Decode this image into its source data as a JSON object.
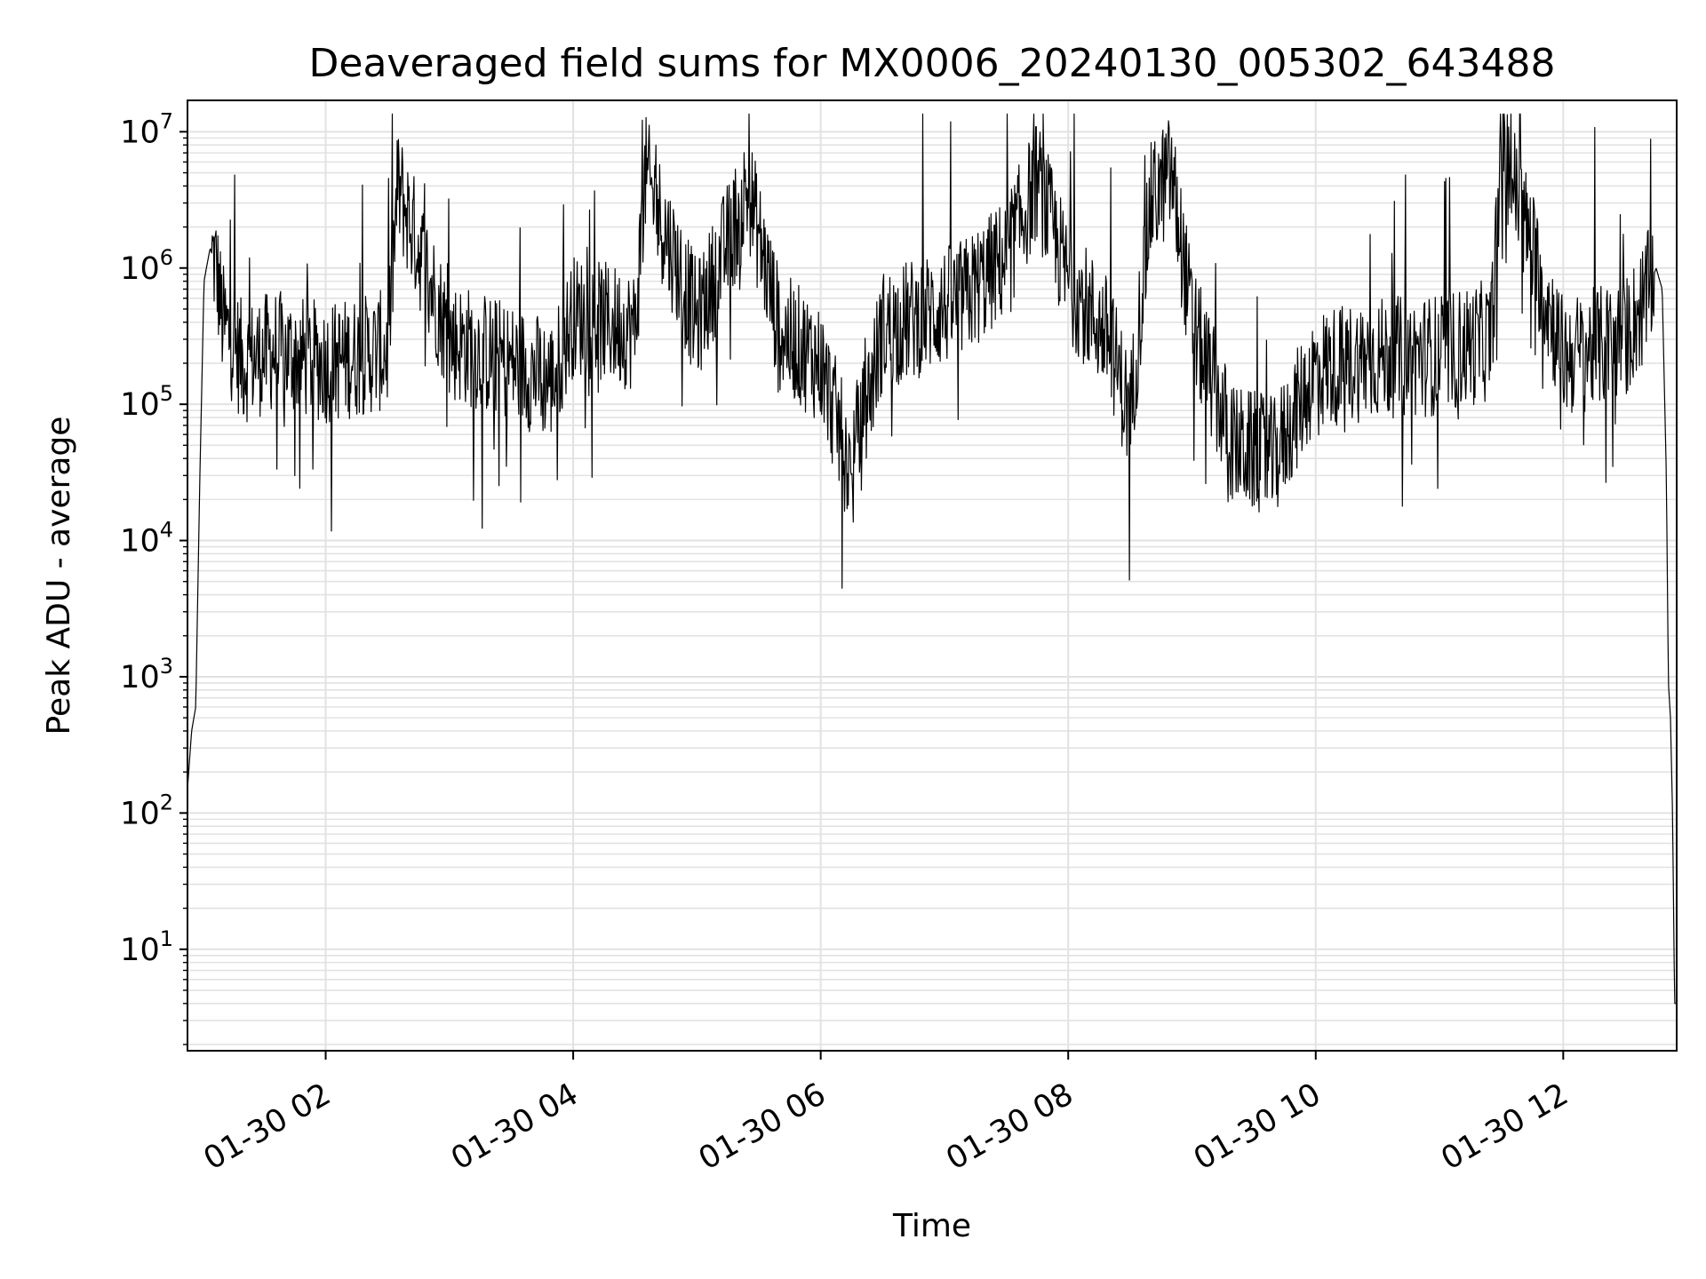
{
  "chart_data": {
    "type": "line",
    "title": "Deaveraged field sums for MX0006_20240130_005302_643488",
    "xlabel": "Time",
    "ylabel": "Peak ADU - average",
    "yscale": "log",
    "ylim": [
      1.8,
      17000000
    ],
    "xlim": [
      "2024-01-30 00:53",
      "2024-01-30 12:55"
    ],
    "grid": true,
    "line_color": "#000000",
    "x_ticks": [
      "01-30 02",
      "01-30 04",
      "01-30 06",
      "01-30 08",
      "01-30 10",
      "01-30 12"
    ],
    "y_ticks": [
      {
        "value": 10,
        "base": "10",
        "exp": "1"
      },
      {
        "value": 100,
        "base": "10",
        "exp": "2"
      },
      {
        "value": 1000,
        "base": "10",
        "exp": "3"
      },
      {
        "value": 10000,
        "base": "10",
        "exp": "4"
      },
      {
        "value": 100000,
        "base": "10",
        "exp": "5"
      },
      {
        "value": 1000000,
        "base": "10",
        "exp": "6"
      },
      {
        "value": 10000000,
        "base": "10",
        "exp": "7"
      }
    ],
    "series": [
      {
        "x": [
          "2024-01-30 00:53",
          "2024-01-30 00:55",
          "2024-01-30 00:57",
          "2024-01-30 00:59",
          "2024-01-30 01:01",
          "2024-01-30 01:04",
          "2024-01-30 01:07",
          "2024-01-30 01:10",
          "2024-01-30 01:20",
          "2024-01-30 01:35",
          "2024-01-30 02:00",
          "2024-01-30 02:30",
          "2024-01-30 02:35",
          "2024-01-30 03:00",
          "2024-01-30 03:30",
          "2024-01-30 03:50",
          "2024-01-30 04:00",
          "2024-01-30 04:30",
          "2024-01-30 04:35",
          "2024-01-30 05:00",
          "2024-01-30 05:25",
          "2024-01-30 05:40",
          "2024-01-30 06:00",
          "2024-01-30 06:15",
          "2024-01-30 06:30",
          "2024-01-30 06:50",
          "2024-01-30 07:10",
          "2024-01-30 07:30",
          "2024-01-30 07:45",
          "2024-01-30 08:00",
          "2024-01-30 08:20",
          "2024-01-30 08:30",
          "2024-01-30 08:40",
          "2024-01-30 08:50",
          "2024-01-30 09:00",
          "2024-01-30 09:20",
          "2024-01-30 09:40",
          "2024-01-30 10:00",
          "2024-01-30 10:30",
          "2024-01-30 11:00",
          "2024-01-30 11:25",
          "2024-01-30 11:30",
          "2024-01-30 12:00",
          "2024-01-30 12:30",
          "2024-01-30 12:40",
          "2024-01-30 12:45",
          "2024-01-30 12:48",
          "2024-01-30 12:50",
          "2024-01-30 12:51",
          "2024-01-30 12:52",
          "2024-01-30 12:53",
          "2024-01-30 12:54",
          "2024-01-30 12:55"
        ],
        "y": [
          150,
          400,
          600,
          30000,
          800000,
          1400000,
          1000000,
          400000,
          200000,
          250000,
          200000,
          250000,
          4000000,
          300000,
          200000,
          150000,
          450000,
          350000,
          4800000,
          400000,
          3800000,
          350000,
          200000,
          30000,
          350000,
          450000,
          600000,
          1200000,
          4500000,
          800000,
          300000,
          80000,
          3000000,
          5000000,
          400000,
          50000,
          40000,
          180000,
          220000,
          230000,
          300000,
          8500000,
          220000,
          300000,
          600000,
          1000000,
          700000,
          30000,
          900,
          500,
          100,
          4,
          4
        ]
      }
    ]
  }
}
